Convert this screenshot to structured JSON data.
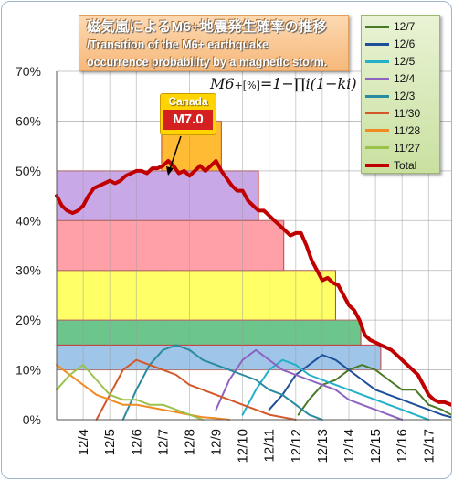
{
  "title": {
    "jp": "磁気嵐によるM6+地震発生確率の推移",
    "en_line1": "/Transition of the M6+ earthquake",
    "en_line2": "occurrence probability by a magnetic storm."
  },
  "formula": {
    "lhs": "M6",
    "sub": "+[%]",
    "rhs": "=1−∏i(1−ki)"
  },
  "callout": {
    "region": "Canada",
    "magnitude": "M7.0"
  },
  "chart_data": {
    "type": "line",
    "ylabel": "",
    "xlabel": "",
    "ylim": [
      0,
      70
    ],
    "yticks": [
      "0%",
      "10%",
      "20%",
      "30%",
      "40%",
      "50%",
      "60%",
      "70%"
    ],
    "x_range": [
      3.0,
      17.85
    ],
    "xticks": [
      {
        "label": "12/4",
        "x": 4
      },
      {
        "label": "12/5",
        "x": 5
      },
      {
        "label": "12/6",
        "x": 6
      },
      {
        "label": "12/7",
        "x": 7
      },
      {
        "label": "12/8",
        "x": 8
      },
      {
        "label": "12/9",
        "x": 9
      },
      {
        "label": "12/10",
        "x": 10
      },
      {
        "label": "12/11",
        "x": 11
      },
      {
        "label": "12/12",
        "x": 12
      },
      {
        "label": "12/13",
        "x": 13
      },
      {
        "label": "12/14",
        "x": 14
      },
      {
        "label": "12/15",
        "x": 15
      },
      {
        "label": "12/16",
        "x": 16
      },
      {
        "label": "12/17",
        "x": 17
      }
    ],
    "grid": true,
    "legend_position": "top-right",
    "bands": [
      {
        "x0": 3.0,
        "x1": 15.2,
        "y0": 10,
        "y1": 15,
        "color": "#9fc5e8"
      },
      {
        "x0": 3.0,
        "x1": 14.45,
        "y0": 15,
        "y1": 20,
        "color": "#6cc58a"
      },
      {
        "x0": 3.0,
        "x1": 13.5,
        "y0": 20,
        "y1": 30,
        "color": "#ffff66"
      },
      {
        "x0": 3.0,
        "x1": 11.55,
        "y0": 30,
        "y1": 40,
        "color": "#ffa0a8"
      },
      {
        "x0": 3.0,
        "x1": 10.6,
        "y0": 40,
        "y1": 50,
        "color": "#c9a8e8"
      },
      {
        "x0": 6.95,
        "x1": 9.2,
        "y0": 50,
        "y1": 60,
        "color": "#ffbb33"
      }
    ],
    "series": [
      {
        "name": "12/7",
        "color": "#4a7a28",
        "x": [
          12.1,
          12.5,
          13.0,
          13.5,
          14.0,
          14.5,
          15.0,
          15.5,
          16.0,
          16.5,
          17.0,
          17.5,
          17.85
        ],
        "y": [
          1,
          4,
          7,
          8,
          10,
          11,
          10,
          8,
          6,
          6,
          3,
          2,
          1
        ]
      },
      {
        "name": "12/6",
        "color": "#1f4e9a",
        "x": [
          11.0,
          11.5,
          12.0,
          12.5,
          13.0,
          13.5,
          14.0,
          14.5,
          15.0,
          15.5,
          16.0,
          16.5,
          17.0,
          17.5,
          17.85
        ],
        "y": [
          2,
          5,
          9,
          11,
          13,
          12,
          10,
          8,
          6,
          5,
          4,
          3,
          2,
          1,
          0.5
        ]
      },
      {
        "name": "12/5",
        "color": "#23b0c8",
        "x": [
          10.0,
          10.5,
          11.0,
          11.5,
          12.0,
          12.5,
          13.0,
          13.5,
          14.0,
          14.5,
          15.0,
          15.5,
          16.0,
          16.5,
          17.0
        ],
        "y": [
          1,
          6,
          10,
          12,
          11,
          9,
          8,
          7,
          6,
          5,
          4,
          3,
          2,
          1,
          0
        ]
      },
      {
        "name": "12/4",
        "color": "#8d63c0",
        "x": [
          9.0,
          9.5,
          10.0,
          10.5,
          11.0,
          11.5,
          12.0,
          12.5,
          13.0,
          13.5,
          14.0,
          14.5,
          15.0,
          15.5,
          16.0
        ],
        "y": [
          2,
          8,
          12,
          14,
          12,
          10,
          9,
          8,
          7,
          6,
          4,
          3,
          2,
          1,
          0
        ]
      },
      {
        "name": "12/3",
        "color": "#2a8aa0",
        "x": [
          5.5,
          6.0,
          6.5,
          7.0,
          7.5,
          8.0,
          8.5,
          9.0,
          9.5,
          10.0,
          10.5,
          11.0,
          11.5,
          12.0,
          12.5,
          13.0
        ],
        "y": [
          0,
          6,
          11,
          14,
          15,
          14,
          12,
          11,
          10,
          9,
          8,
          6,
          5,
          3,
          1,
          0
        ]
      },
      {
        "name": "11/30",
        "color": "#d4572a",
        "x": [
          4.5,
          5.0,
          5.5,
          6.0,
          6.5,
          7.0,
          7.5,
          8.0,
          8.5,
          9.0,
          9.5,
          10.0,
          10.5,
          11.0,
          11.5,
          12.0
        ],
        "y": [
          0,
          5,
          10,
          12,
          11,
          10,
          9,
          7,
          6,
          5,
          4,
          3,
          2,
          1,
          0.5,
          0
        ]
      },
      {
        "name": "11/28",
        "color": "#f08a22",
        "x": [
          3.0,
          3.5,
          4.0,
          4.5,
          5.0,
          5.5,
          6.0,
          6.5,
          7.0,
          7.5,
          8.0,
          8.5,
          9.0,
          9.5
        ],
        "y": [
          11,
          9,
          7,
          5,
          4,
          3,
          3,
          2.5,
          2,
          1.5,
          1,
          0.5,
          0.3,
          0
        ]
      },
      {
        "name": "11/27",
        "color": "#9bc24a",
        "x": [
          3.0,
          3.5,
          4.0,
          4.5,
          5.0,
          5.5,
          6.0,
          6.5,
          7.0,
          7.5,
          8.0,
          8.5
        ],
        "y": [
          6,
          9,
          11,
          8,
          5,
          4,
          4,
          3,
          3,
          2,
          1,
          0
        ]
      },
      {
        "name": "Total",
        "color": "#c00000",
        "x": [
          3.0,
          3.2,
          3.4,
          3.6,
          3.8,
          4.0,
          4.2,
          4.4,
          4.6,
          4.8,
          5.0,
          5.2,
          5.4,
          5.6,
          5.8,
          6.0,
          6.2,
          6.4,
          6.6,
          6.8,
          7.0,
          7.2,
          7.4,
          7.6,
          7.8,
          8.0,
          8.2,
          8.4,
          8.6,
          8.8,
          9.0,
          9.2,
          9.4,
          9.6,
          9.8,
          10.0,
          10.2,
          10.4,
          10.6,
          10.8,
          11.0,
          11.2,
          11.4,
          11.6,
          11.8,
          12.0,
          12.2,
          12.4,
          12.6,
          12.8,
          13.0,
          13.2,
          13.4,
          13.6,
          13.8,
          14.0,
          14.2,
          14.4,
          14.6,
          14.8,
          15.0,
          15.2,
          15.4,
          15.6,
          15.8,
          16.0,
          16.2,
          16.4,
          16.6,
          16.8,
          17.0,
          17.2,
          17.4,
          17.6,
          17.85
        ],
        "y": [
          45,
          43,
          42,
          41.5,
          42,
          43,
          45,
          46.5,
          47,
          47.5,
          48,
          47.5,
          48,
          49,
          49.5,
          50,
          50,
          49.5,
          50.5,
          50.5,
          51,
          52,
          51,
          49.5,
          50,
          49,
          50,
          51,
          50,
          51,
          52,
          50,
          48.5,
          47,
          46,
          46,
          44,
          43,
          42,
          42,
          41,
          40,
          39,
          38,
          37,
          37.5,
          37.5,
          35,
          32,
          30,
          28,
          28.5,
          27.5,
          27,
          25,
          23,
          22,
          20,
          17,
          16,
          15.5,
          15,
          14.5,
          14,
          13,
          12,
          11,
          10,
          9,
          7,
          5,
          4,
          3.5,
          3.5,
          3
        ]
      }
    ]
  }
}
